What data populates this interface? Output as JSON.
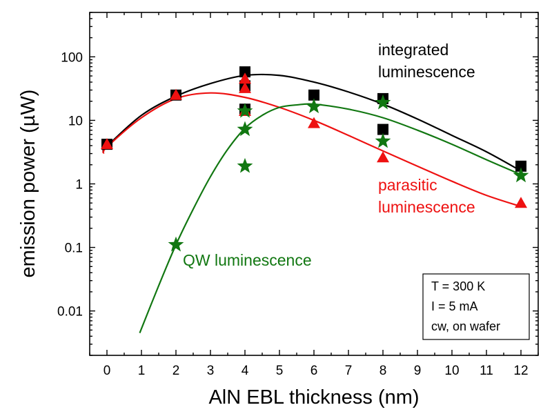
{
  "chart_data": {
    "type": "scatter",
    "xlabel": "AlN EBL thickness (nm)",
    "ylabel": "emission power (µW)",
    "xlim": [
      -0.5,
      12.5
    ],
    "ylim": [
      0.002,
      500
    ],
    "yscale": "log",
    "x_ticks": [
      "0",
      "1",
      "2",
      "3",
      "4",
      "5",
      "6",
      "7",
      "8",
      "9",
      "10",
      "11",
      "12"
    ],
    "y_ticks": [
      "0.01",
      "0.1",
      "1",
      "10",
      "100"
    ],
    "grid": false,
    "series": [
      {
        "name": "integrated luminescence",
        "color": "#000000",
        "marker": "square",
        "points": [
          [
            0,
            4.2
          ],
          [
            2,
            25
          ],
          [
            4,
            58
          ],
          [
            4,
            35
          ],
          [
            4,
            15
          ],
          [
            6,
            25
          ],
          [
            8,
            22
          ],
          [
            8,
            7.2
          ],
          [
            12,
            1.9
          ]
        ],
        "fit": [
          [
            -0.1,
            3.2
          ],
          [
            0,
            3.9
          ],
          [
            1,
            12
          ],
          [
            2,
            24
          ],
          [
            3,
            38
          ],
          [
            4,
            51
          ],
          [
            5,
            51
          ],
          [
            6,
            40
          ],
          [
            7,
            28
          ],
          [
            8,
            18
          ],
          [
            9,
            10.5
          ],
          [
            10,
            5.8
          ],
          [
            11,
            3.2
          ],
          [
            12,
            1.6
          ]
        ]
      },
      {
        "name": "parasitic luminescence",
        "color": "#ee1111",
        "marker": "triangle",
        "points": [
          [
            0,
            4.2
          ],
          [
            2,
            25
          ],
          [
            4,
            45
          ],
          [
            4,
            32
          ],
          [
            4,
            14
          ],
          [
            6,
            9
          ],
          [
            8,
            2.6
          ],
          [
            12,
            0.5
          ]
        ],
        "fit": [
          [
            -0.1,
            3.0
          ],
          [
            0,
            3.8
          ],
          [
            1,
            11
          ],
          [
            2,
            22
          ],
          [
            3,
            27
          ],
          [
            4,
            23
          ],
          [
            5,
            16
          ],
          [
            6,
            10
          ],
          [
            7,
            5.8
          ],
          [
            8,
            3.3
          ],
          [
            9,
            1.9
          ],
          [
            10,
            1.1
          ],
          [
            11,
            0.66
          ],
          [
            12,
            0.44
          ]
        ]
      },
      {
        "name": "QW luminescence",
        "color": "#117711",
        "marker": "star",
        "points": [
          [
            2,
            0.11
          ],
          [
            4,
            14
          ],
          [
            4,
            7.2
          ],
          [
            4,
            1.9
          ],
          [
            6,
            16.5
          ],
          [
            8,
            19
          ],
          [
            8,
            4.7
          ],
          [
            12,
            1.35
          ]
        ],
        "fit": [
          [
            0.95,
            0.0045
          ],
          [
            1.5,
            0.025
          ],
          [
            2,
            0.11
          ],
          [
            2.5,
            0.4
          ],
          [
            3,
            1.3
          ],
          [
            3.5,
            3.5
          ],
          [
            4,
            7.5
          ],
          [
            4.5,
            12
          ],
          [
            5,
            16
          ],
          [
            5.5,
            17.5
          ],
          [
            6,
            18
          ],
          [
            7,
            15
          ],
          [
            8,
            11
          ],
          [
            9,
            7
          ],
          [
            10,
            4.2
          ],
          [
            11,
            2.4
          ],
          [
            12,
            1.4
          ]
        ]
      }
    ],
    "annotations": {
      "integrated_line1": "integrated",
      "integrated_line2": "luminescence",
      "parasitic_line1": "parasitic",
      "parasitic_line2": "luminescence",
      "qw": "QW luminescence"
    },
    "infobox": [
      "T = 300 K",
      "I = 5 mA",
      "cw, on wafer"
    ]
  }
}
